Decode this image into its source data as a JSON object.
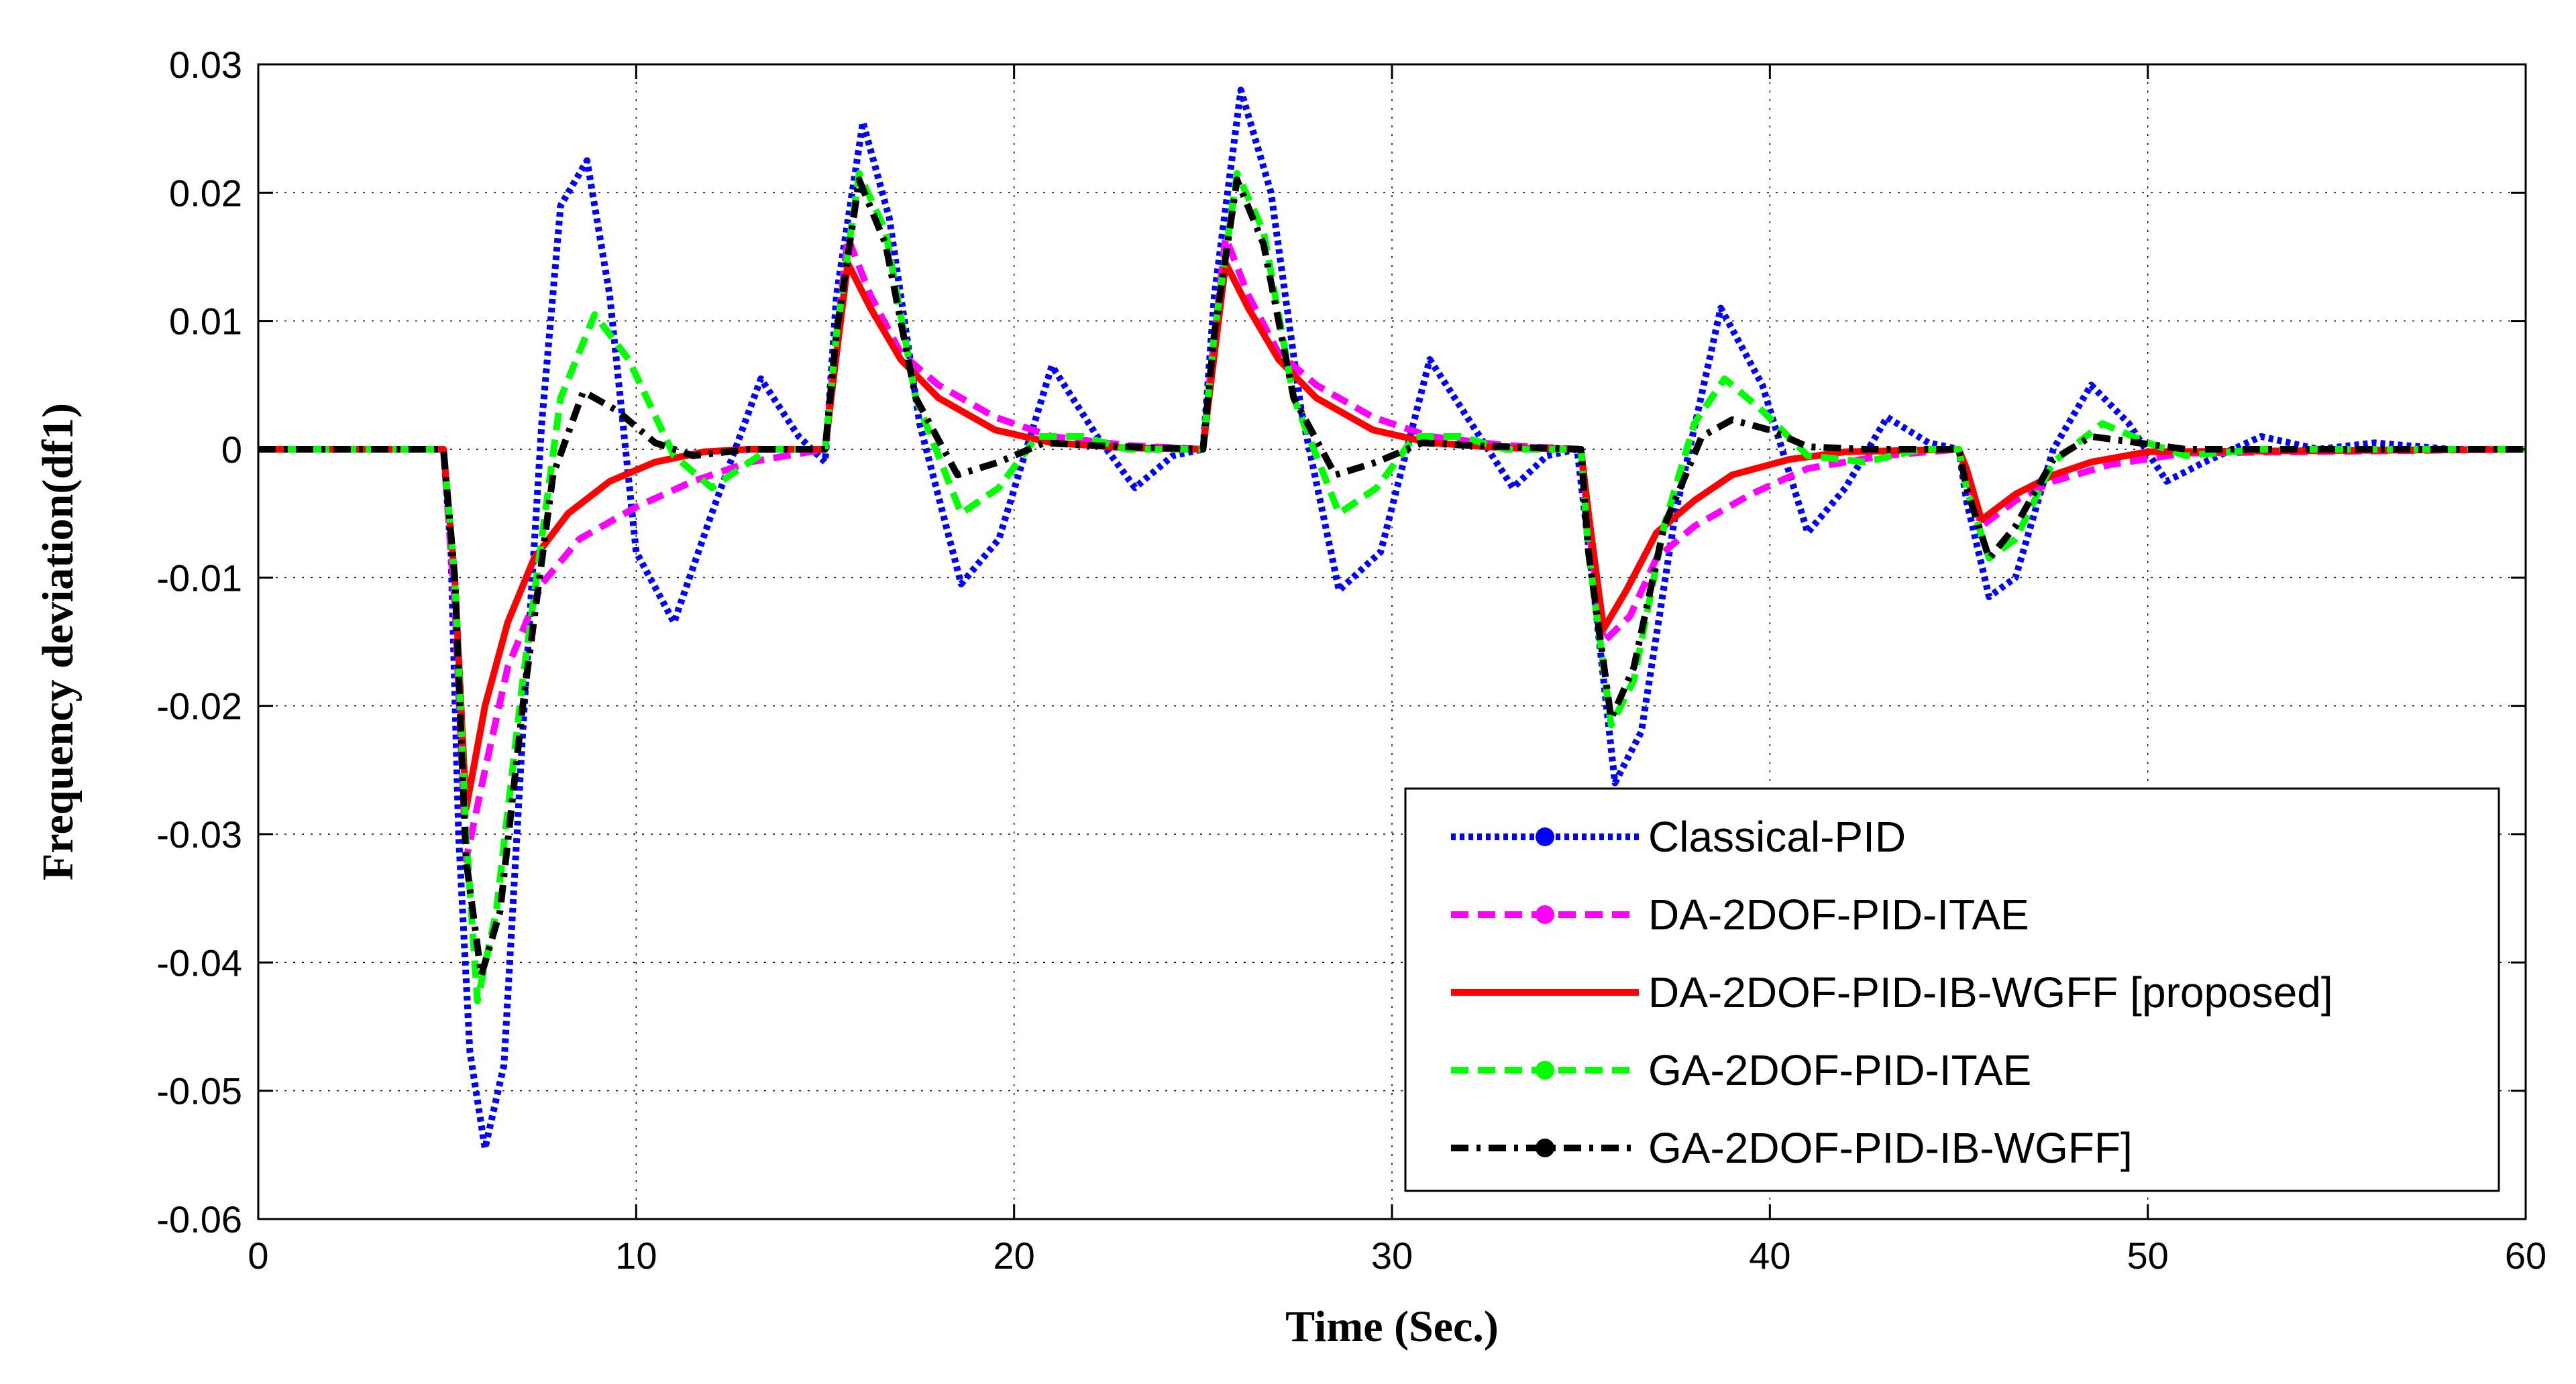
{
  "chart_data": {
    "type": "line",
    "title": "",
    "xlabel": "Time (Sec.)",
    "ylabel": "Frequency deviation(df1)",
    "xlim": [
      0,
      60
    ],
    "ylim": [
      -0.06,
      0.03
    ],
    "xticks": [
      0,
      10,
      20,
      30,
      40,
      50,
      60
    ],
    "yticks": [
      -0.06,
      -0.05,
      -0.04,
      -0.03,
      -0.02,
      -0.01,
      0,
      0.01,
      0.02,
      0.03
    ],
    "xtick_labels": [
      "0",
      "10",
      "20",
      "30",
      "40",
      "50",
      "60"
    ],
    "ytick_labels": [
      "-0.06",
      "-0.05",
      "-0.04",
      "-0.03",
      "-0.02",
      "-0.01",
      "0",
      "0.01",
      "0.02",
      "0.03"
    ],
    "grid": true,
    "legend_position": "bottom-right",
    "series": [
      {
        "name": "Classical-PID",
        "color": "#0000ff",
        "style": "dotted",
        "x": [
          0,
          4.9,
          5.1,
          5.3,
          5.6,
          6.0,
          6.5,
          7.0,
          7.5,
          8.0,
          8.7,
          9.3,
          10.0,
          11.0,
          12.0,
          13.3,
          14.3,
          15.0,
          15.3,
          16.0,
          16.7,
          17.5,
          18.6,
          19.6,
          21.0,
          22.2,
          23.2,
          24.2,
          25.0,
          25.3,
          26.0,
          26.8,
          27.6,
          28.6,
          29.7,
          31.0,
          32.1,
          33.2,
          34.1,
          34.9,
          35.3,
          35.9,
          36.6,
          37.5,
          38.7,
          39.8,
          41.0,
          42.0,
          43.1,
          44.2,
          45.0,
          45.2,
          45.8,
          46.5,
          47.5,
          48.5,
          49.5,
          50.5,
          51.5,
          53.0,
          54.5,
          56.0,
          58.0,
          60.0
        ],
        "y": [
          0,
          0,
          -0.008,
          -0.03,
          -0.047,
          -0.0545,
          -0.048,
          -0.022,
          0.002,
          0.019,
          0.0225,
          0.012,
          -0.008,
          -0.0135,
          -0.005,
          0.0055,
          0.001,
          -0.001,
          0.012,
          0.0255,
          0.018,
          0.002,
          -0.0105,
          -0.007,
          0.0065,
          0.001,
          -0.003,
          -0.0005,
          0,
          0.012,
          0.028,
          0.02,
          0.003,
          -0.011,
          -0.008,
          0.007,
          0.002,
          -0.003,
          -0.0005,
          0,
          -0.01,
          -0.026,
          -0.022,
          -0.005,
          0.011,
          0.005,
          -0.0065,
          -0.003,
          0.0025,
          0.0005,
          0,
          -0.004,
          -0.0115,
          -0.01,
          0,
          0.005,
          0.002,
          -0.0025,
          -0.001,
          0.001,
          0,
          0.0005,
          0,
          0
        ]
      },
      {
        "name": "DA-2DOF-PID-ITAE",
        "color": "#ff00ff",
        "style": "dashed",
        "x": [
          0,
          4.9,
          5.2,
          5.5,
          6.0,
          6.6,
          7.5,
          8.5,
          10.0,
          11.5,
          13.0,
          15.0,
          15.2,
          15.6,
          16.2,
          17.0,
          18.0,
          19.5,
          21.0,
          23.0,
          25.0,
          25.2,
          25.6,
          26.2,
          27.0,
          28.0,
          29.5,
          31.0,
          33.0,
          35.0,
          35.2,
          35.6,
          36.3,
          37.0,
          38.0,
          39.5,
          41.0,
          43.0,
          45.0,
          45.2,
          45.6,
          46.5,
          47.5,
          49.0,
          51.0,
          60.0
        ],
        "y": [
          0,
          0,
          -0.012,
          -0.032,
          -0.025,
          -0.017,
          -0.0105,
          -0.007,
          -0.0045,
          -0.0025,
          -0.001,
          0,
          0.006,
          0.0165,
          0.012,
          0.0075,
          0.005,
          0.0025,
          0.001,
          0.0003,
          0,
          0.006,
          0.0165,
          0.012,
          0.0075,
          0.005,
          0.0025,
          0.001,
          0.0003,
          0,
          -0.006,
          -0.015,
          -0.013,
          -0.0085,
          -0.006,
          -0.0035,
          -0.0015,
          -0.0005,
          0,
          -0.002,
          -0.006,
          -0.004,
          -0.0025,
          -0.0012,
          -0.0003,
          0
        ]
      },
      {
        "name": "DA-2DOF-PID-IB-WGFF [proposed]",
        "color": "#ff0000",
        "style": "solid",
        "x": [
          0,
          4.9,
          5.2,
          5.5,
          6.0,
          6.6,
          7.3,
          8.2,
          9.3,
          10.5,
          11.8,
          13.0,
          15.0,
          15.2,
          15.6,
          16.2,
          17.0,
          18.0,
          19.5,
          21.0,
          23.0,
          25.0,
          25.2,
          25.6,
          26.2,
          27.0,
          28.0,
          29.5,
          31.0,
          33.0,
          35.0,
          35.2,
          35.6,
          36.2,
          37.0,
          38.0,
          39.0,
          40.5,
          42.0,
          45.0,
          45.2,
          45.6,
          46.5,
          47.5,
          48.5,
          50.0,
          60.0
        ],
        "y": [
          0,
          0,
          -0.01,
          -0.028,
          -0.02,
          -0.0135,
          -0.0085,
          -0.005,
          -0.0025,
          -0.001,
          -0.0002,
          0,
          0,
          0.005,
          0.0145,
          0.011,
          0.007,
          0.004,
          0.0015,
          0.0005,
          0.0001,
          0,
          0.005,
          0.0145,
          0.011,
          0.007,
          0.004,
          0.0015,
          0.0005,
          0.0001,
          0,
          -0.005,
          -0.014,
          -0.011,
          -0.0065,
          -0.004,
          -0.002,
          -0.0008,
          -0.0002,
          0,
          -0.0015,
          -0.0055,
          -0.0035,
          -0.002,
          -0.001,
          -0.0002,
          0
        ]
      },
      {
        "name": "GA-2DOF-PID-ITAE",
        "color": "#00ff00",
        "style": "dashed",
        "x": [
          0,
          4.9,
          5.2,
          5.5,
          5.8,
          6.3,
          7.0,
          8.0,
          8.9,
          9.8,
          11.0,
          12.0,
          13.5,
          15.0,
          15.3,
          15.9,
          16.6,
          17.4,
          18.6,
          19.6,
          20.6,
          21.8,
          23.0,
          25.0,
          25.3,
          25.9,
          26.6,
          27.4,
          28.6,
          29.6,
          30.6,
          31.8,
          33.0,
          35.0,
          35.2,
          35.8,
          36.4,
          37.2,
          38.0,
          38.8,
          39.8,
          41.0,
          42.5,
          44.0,
          45.0,
          45.2,
          45.8,
          46.5,
          47.5,
          48.8,
          50.0,
          51.0,
          53.0,
          60.0
        ],
        "y": [
          0,
          0,
          -0.01,
          -0.03,
          -0.043,
          -0.036,
          -0.018,
          0.004,
          0.0105,
          0.007,
          -0.0005,
          -0.003,
          0,
          0,
          0.009,
          0.0215,
          0.017,
          0.004,
          -0.005,
          -0.003,
          0.001,
          0.001,
          0,
          0,
          0.009,
          0.0215,
          0.017,
          0.004,
          -0.005,
          -0.003,
          0.001,
          0.001,
          0,
          0,
          -0.008,
          -0.0215,
          -0.018,
          -0.006,
          0.002,
          0.0055,
          0.003,
          -0.0005,
          -0.001,
          0,
          0,
          -0.003,
          -0.0085,
          -0.007,
          -0.001,
          0.002,
          0.0005,
          -0.0005,
          0,
          0
        ]
      },
      {
        "name": "GA-2DOF-PID-IB-WGFF]",
        "color": "#000000",
        "style": "dashdot",
        "x": [
          0,
          4.9,
          5.2,
          5.5,
          5.9,
          6.4,
          7.0,
          7.8,
          8.6,
          9.5,
          10.5,
          11.5,
          13.0,
          15.0,
          15.3,
          15.9,
          16.6,
          17.4,
          18.5,
          19.6,
          20.8,
          22.0,
          25.0,
          25.3,
          25.9,
          26.6,
          27.4,
          28.5,
          29.6,
          30.8,
          32.0,
          35.0,
          35.2,
          35.8,
          36.4,
          37.2,
          38.2,
          39.0,
          40.0,
          41.0,
          42.5,
          45.0,
          45.2,
          45.8,
          46.5,
          47.5,
          48.5,
          49.5,
          51.0,
          60.0
        ],
        "y": [
          0,
          0,
          -0.01,
          -0.032,
          -0.041,
          -0.036,
          -0.02,
          -0.002,
          0.0045,
          0.003,
          0.0005,
          -0.0005,
          0,
          0,
          0.009,
          0.021,
          0.016,
          0.004,
          -0.002,
          -0.001,
          0.0005,
          0.0003,
          0,
          0.009,
          0.021,
          0.016,
          0.004,
          -0.002,
          -0.001,
          0.0005,
          0.0003,
          0,
          -0.008,
          -0.021,
          -0.017,
          -0.006,
          0.001,
          0.0023,
          0.0015,
          0.0002,
          0,
          0,
          -0.003,
          -0.0085,
          -0.006,
          -0.0008,
          0.001,
          0.0006,
          0,
          0
        ]
      }
    ]
  }
}
